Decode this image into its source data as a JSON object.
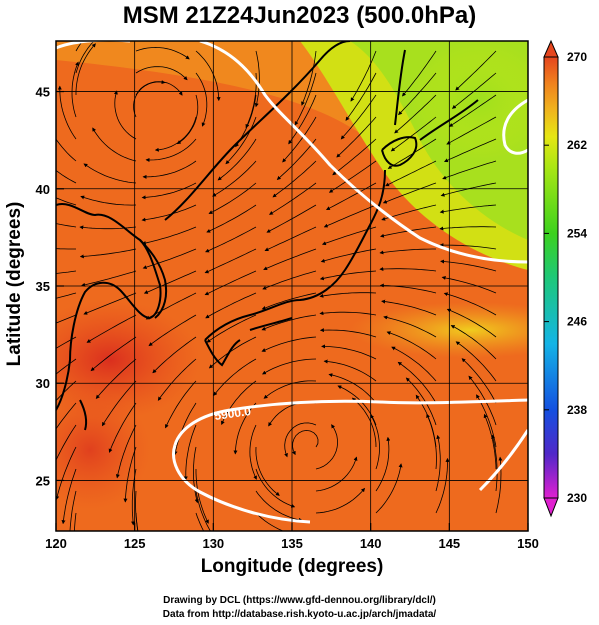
{
  "title": "MSM 21Z24Jun2023 (500.0hPa)",
  "x_axis": {
    "label": "Longitude (degrees)",
    "range": [
      120,
      150
    ],
    "ticks": [
      120,
      125,
      130,
      135,
      140,
      145,
      150
    ]
  },
  "y_axis": {
    "label": "Latitude  (degrees)",
    "range": [
      22.4,
      47.6
    ],
    "ticks": [
      25,
      30,
      35,
      40,
      45
    ]
  },
  "colorbar": {
    "range": [
      230,
      270
    ],
    "labels": [
      230,
      238,
      246,
      254,
      262,
      270
    ],
    "colors": [
      "#e020d0",
      "#5028c8",
      "#1450e0",
      "#14b4e6",
      "#1ec878",
      "#3cd21e",
      "#aae614",
      "#e6e614",
      "#f0b41e",
      "#f0821e",
      "#e6461e"
    ]
  },
  "contour": {
    "label": "5900.0",
    "color": "#ffffff"
  },
  "map_features": {
    "field": "temperature shading with streamlines",
    "coastlines": "black",
    "grid": true,
    "warm_color": "#ee5a1e",
    "cool_color": "#9ee01e"
  },
  "credits": {
    "line1": "Drawing by DCL (https://www.gfd-dennou.org/library/dcl/)",
    "line2": "Data from http://database.rish.kyoto-u.ac.jp/arch/jmadata/"
  }
}
